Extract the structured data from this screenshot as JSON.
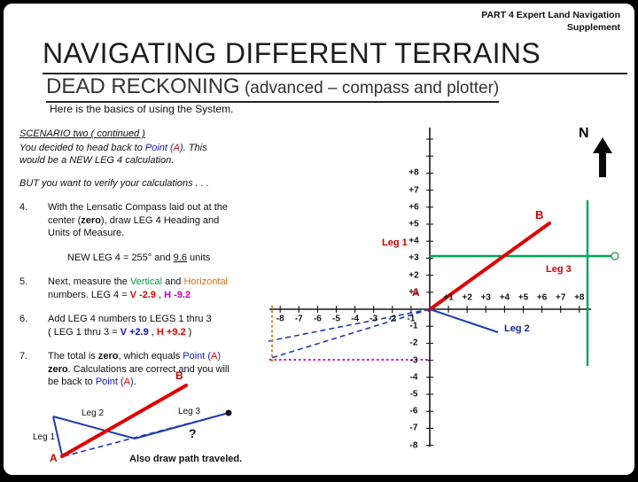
{
  "frame": {
    "kicker_line1": "PART 4  Expert  Land Navigation",
    "kicker_line2": "Supplement"
  },
  "header": {
    "title": "NAVIGATING DIFFERENT TERRAINS",
    "subtitle": "DEAD RECKONING",
    "subtitle_note": " (advanced – compass and plotter)",
    "intro": "Here is the basics of using the System."
  },
  "scenario": {
    "heading": "SCENARIO two ( continued )",
    "body": [
      {
        "t": "You decided to head back to "
      },
      {
        "t": "Point (",
        "s": "blue"
      },
      {
        "t": "A",
        "s": "red"
      },
      {
        "t": ")",
        "s": "blue"
      },
      {
        "t": ". This would be a NEW  LEG 4 calculation."
      }
    ],
    "verify": "BUT you want to verify your calculations . . ."
  },
  "steps": [
    {
      "num": "4.",
      "segments": [
        {
          "t": "With the Lensatic Compass laid out at the center ("
        },
        {
          "t": "zero",
          "s": "b"
        },
        {
          "t": "), draw LEG 4 Heading and Units of Measure."
        }
      ]
    },
    {
      "num": "5.",
      "segments": [
        {
          "t": "Next, measure the "
        },
        {
          "t": "Vertical",
          "s": "green"
        },
        {
          "t": " and "
        },
        {
          "t": "Horizontal",
          "s": "orange"
        },
        {
          "t": " numbers.   LEG 4 = "
        },
        {
          "t": "V -2.9",
          "s": "red b"
        },
        {
          "t": " , "
        },
        {
          "t": "H -9.2",
          "s": "magenta b"
        }
      ]
    },
    {
      "num": "6.",
      "segments": [
        {
          "t": "Add LEG 4 numbers to LEGS 1 thru 3"
        },
        {
          "br": true
        },
        {
          "t": "( LEG 1 thru 3 = "
        },
        {
          "t": "V +2.9",
          "s": "blue b"
        },
        {
          "t": " , "
        },
        {
          "t": "H +9.2",
          "s": "red b"
        },
        {
          "t": " )"
        }
      ]
    },
    {
      "num": "7.",
      "segments": [
        {
          "t": "The total is "
        },
        {
          "t": "zero",
          "s": "b"
        },
        {
          "t": ", which equals "
        },
        {
          "t": "Point (",
          "s": "blue"
        },
        {
          "t": "A",
          "s": "red"
        },
        {
          "t": ")",
          "s": "blue"
        },
        {
          "t": " "
        },
        {
          "t": "zero",
          "s": "b"
        },
        {
          "t": ".  Calculations are correct and you will be back to "
        },
        {
          "t": "Point (",
          "s": "blue"
        },
        {
          "t": "A",
          "s": "red"
        },
        {
          "t": ")",
          "s": "blue"
        },
        {
          "t": "."
        }
      ]
    }
  ],
  "leg_note": {
    "segments": [
      {
        "t": "NEW LEG 4 = 255° and "
      },
      {
        "t": "9.6",
        "s": "u"
      },
      {
        "t": " units"
      }
    ]
  },
  "grid": {
    "north_label": "N",
    "y_labels_pos": [
      "+8",
      "+7",
      "+6",
      "+5",
      "+4",
      "+3",
      "+2",
      "+1"
    ],
    "y_labels_neg": [
      "-1",
      "-2",
      "-3",
      "-4",
      "-5",
      "-6",
      "-7",
      "-8"
    ],
    "x_labels_neg": [
      "-8",
      "-7",
      "-6",
      "-5",
      "-4",
      "-3",
      "-2",
      "-1"
    ],
    "x_labels_pos": [
      "+1",
      "+2",
      "+3",
      "+4",
      "+5",
      "+6",
      "+7",
      "+8"
    ],
    "labels": {
      "leg1": "Leg 1",
      "leg2": "Leg 2",
      "leg3": "Leg 3",
      "point_a": "A",
      "point_b": "B"
    },
    "new_leg": {
      "heading": "255°",
      "units": "9.6",
      "vertical": "V -2.9",
      "horizontal": "H -9.2"
    },
    "legs_1_3_total": {
      "vertical": "V +2.9",
      "horizontal": "H +9.2"
    }
  },
  "mini": {
    "leg1": "Leg 1",
    "leg2": "Leg 2",
    "leg3": "Leg 3",
    "point_a": "A",
    "point_b": "B",
    "question": "?",
    "caption": "Also draw path traveled."
  },
  "colors": {
    "red_line": "#e00000",
    "green_line": "#00a651",
    "blue_line": "#1f3bb3",
    "magenta_line": "#cc00cc",
    "orange_line": "#e07b00",
    "text_blue": "#1414cc"
  }
}
